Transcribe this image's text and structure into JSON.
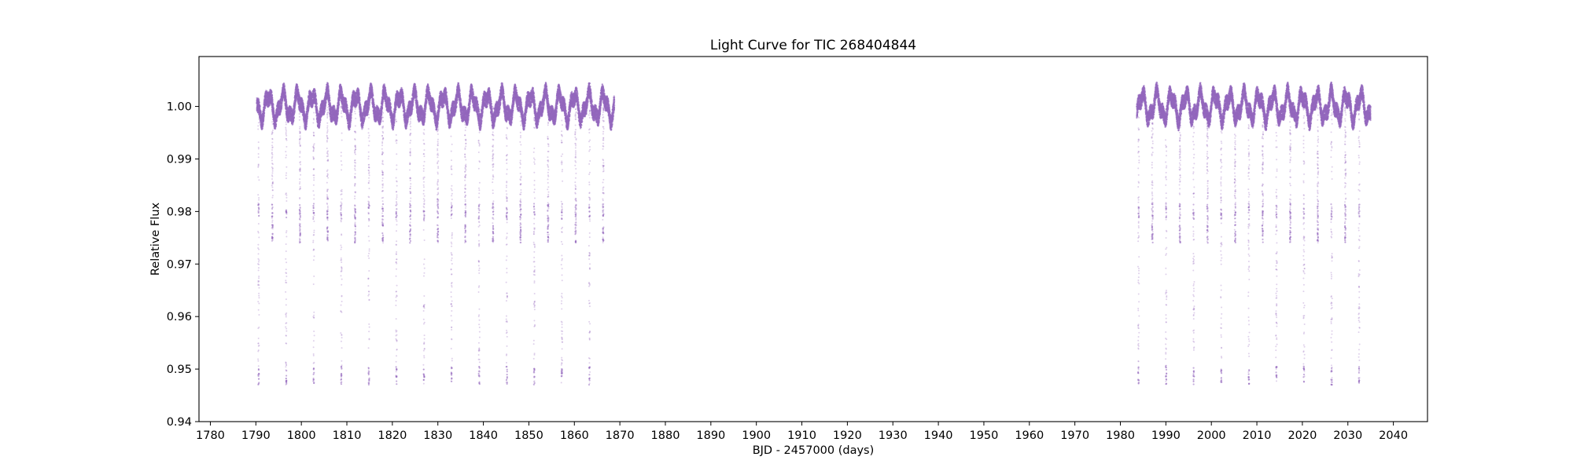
{
  "chart_data": {
    "type": "scatter",
    "title": "Light Curve for TIC 268404844",
    "xlabel": "BJD - 2457000 (days)",
    "ylabel": "Relative Flux",
    "xlim": [
      1777.5,
      2047.5
    ],
    "ylim": [
      0.94,
      1.0095
    ],
    "x_ticks": [
      1780,
      1790,
      1800,
      1810,
      1820,
      1830,
      1840,
      1850,
      1860,
      1870,
      1880,
      1890,
      1900,
      1910,
      1920,
      1930,
      1940,
      1950,
      1960,
      1970,
      1980,
      1990,
      2000,
      2010,
      2020,
      2030,
      2040
    ],
    "x_tick_labels": [
      "1780",
      "1790",
      "1800",
      "1810",
      "1820",
      "1830",
      "1840",
      "1850",
      "1860",
      "1870",
      "1880",
      "1890",
      "1900",
      "1910",
      "1920",
      "1930",
      "1940",
      "1950",
      "1960",
      "1970",
      "1980",
      "1990",
      "2000",
      "2010",
      "2020",
      "2030",
      "2040"
    ],
    "y_ticks": [
      0.94,
      0.95,
      0.96,
      0.97,
      0.98,
      0.99,
      1.0
    ],
    "y_tick_labels": [
      "0.94",
      "0.95",
      "0.96",
      "0.97",
      "0.98",
      "0.99",
      "1.00"
    ],
    "grid": false,
    "legend": "none",
    "marker_color": "#9467bd",
    "series": [
      {
        "segments": [
          {
            "x_start": 1790.2,
            "x_end": 1868.8
          },
          {
            "x_start": 1983.6,
            "x_end": 2035.0
          }
        ],
        "baseline_flux": 1.0,
        "variability_amplitude": 0.004,
        "variability_period_days": 3.2,
        "transit_depth_deep": 0.053,
        "transit_depth_shallow": 0.02,
        "transit_period_days": 3.03
      }
    ]
  }
}
